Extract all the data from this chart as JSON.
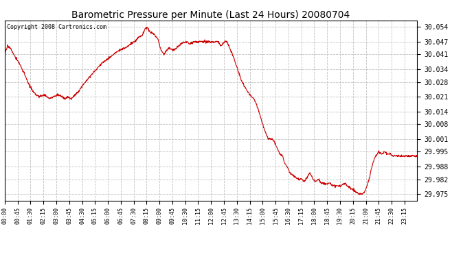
{
  "title": "Barometric Pressure per Minute (Last 24 Hours) 20080704",
  "copyright": "Copyright 2008 Cartronics.com",
  "line_color": "#cc0000",
  "bg_color": "#ffffff",
  "grid_color": "#c0c0c0",
  "yticks": [
    29.975,
    29.982,
    29.988,
    29.995,
    30.001,
    30.008,
    30.014,
    30.021,
    30.028,
    30.034,
    30.041,
    30.047,
    30.054
  ],
  "ylim": [
    29.972,
    30.057
  ],
  "xtick_labels": [
    "00:00",
    "00:45",
    "01:30",
    "02:15",
    "03:00",
    "03:45",
    "04:30",
    "05:15",
    "06:00",
    "06:45",
    "07:30",
    "08:15",
    "09:00",
    "09:45",
    "10:30",
    "11:15",
    "12:00",
    "12:45",
    "13:30",
    "14:15",
    "15:00",
    "15:45",
    "16:30",
    "17:15",
    "18:00",
    "18:45",
    "19:30",
    "20:15",
    "21:00",
    "21:45",
    "22:30",
    "23:15"
  ],
  "keypoints": [
    [
      0,
      30.041
    ],
    [
      10,
      30.045
    ],
    [
      20,
      30.044
    ],
    [
      35,
      30.04
    ],
    [
      50,
      30.037
    ],
    [
      65,
      30.033
    ],
    [
      80,
      30.028
    ],
    [
      100,
      30.023
    ],
    [
      120,
      30.021
    ],
    [
      140,
      30.022
    ],
    [
      155,
      30.02
    ],
    [
      170,
      30.021
    ],
    [
      185,
      30.022
    ],
    [
      200,
      30.021
    ],
    [
      210,
      30.02
    ],
    [
      220,
      30.021
    ],
    [
      230,
      30.02
    ],
    [
      240,
      30.021
    ],
    [
      260,
      30.024
    ],
    [
      280,
      30.028
    ],
    [
      300,
      30.031
    ],
    [
      320,
      30.034
    ],
    [
      340,
      30.037
    ],
    [
      360,
      30.039
    ],
    [
      380,
      30.041
    ],
    [
      400,
      30.043
    ],
    [
      420,
      30.044
    ],
    [
      440,
      30.046
    ],
    [
      455,
      30.047
    ],
    [
      465,
      30.049
    ],
    [
      480,
      30.05
    ],
    [
      490,
      30.053
    ],
    [
      495,
      30.054
    ],
    [
      505,
      30.052
    ],
    [
      515,
      30.051
    ],
    [
      525,
      30.05
    ],
    [
      535,
      30.048
    ],
    [
      545,
      30.043
    ],
    [
      555,
      30.041
    ],
    [
      565,
      30.043
    ],
    [
      575,
      30.044
    ],
    [
      585,
      30.043
    ],
    [
      600,
      30.044
    ],
    [
      615,
      30.046
    ],
    [
      630,
      30.047
    ],
    [
      645,
      30.046
    ],
    [
      660,
      30.047
    ],
    [
      675,
      30.047
    ],
    [
      690,
      30.047
    ],
    [
      705,
      30.047
    ],
    [
      720,
      30.047
    ],
    [
      735,
      30.047
    ],
    [
      745,
      30.047
    ],
    [
      755,
      30.045
    ],
    [
      765,
      30.047
    ],
    [
      775,
      30.047
    ],
    [
      785,
      30.044
    ],
    [
      795,
      30.041
    ],
    [
      810,
      30.035
    ],
    [
      825,
      30.029
    ],
    [
      840,
      30.025
    ],
    [
      855,
      30.022
    ],
    [
      870,
      30.02
    ],
    [
      885,
      30.015
    ],
    [
      900,
      30.008
    ],
    [
      910,
      30.004
    ],
    [
      920,
      30.001
    ],
    [
      930,
      30.001
    ],
    [
      940,
      30.0
    ],
    [
      950,
      29.997
    ],
    [
      960,
      29.994
    ],
    [
      970,
      29.993
    ],
    [
      975,
      29.99
    ],
    [
      985,
      29.988
    ],
    [
      995,
      29.985
    ],
    [
      1005,
      29.984
    ],
    [
      1015,
      29.983
    ],
    [
      1025,
      29.982
    ],
    [
      1035,
      29.982
    ],
    [
      1045,
      29.981
    ],
    [
      1055,
      29.983
    ],
    [
      1065,
      29.985
    ],
    [
      1070,
      29.984
    ],
    [
      1075,
      29.982
    ],
    [
      1085,
      29.981
    ],
    [
      1095,
      29.982
    ],
    [
      1105,
      29.98
    ],
    [
      1115,
      29.98
    ],
    [
      1125,
      29.98
    ],
    [
      1135,
      29.98
    ],
    [
      1145,
      29.979
    ],
    [
      1155,
      29.979
    ],
    [
      1165,
      29.979
    ],
    [
      1175,
      29.979
    ],
    [
      1185,
      29.98
    ],
    [
      1195,
      29.979
    ],
    [
      1205,
      29.978
    ],
    [
      1215,
      29.977
    ],
    [
      1225,
      29.976
    ],
    [
      1235,
      29.975
    ],
    [
      1245,
      29.975
    ],
    [
      1255,
      29.976
    ],
    [
      1265,
      29.979
    ],
    [
      1275,
      29.984
    ],
    [
      1285,
      29.99
    ],
    [
      1295,
      29.993
    ],
    [
      1305,
      29.995
    ],
    [
      1315,
      29.994
    ],
    [
      1325,
      29.995
    ],
    [
      1335,
      29.994
    ],
    [
      1345,
      29.994
    ],
    [
      1355,
      29.993
    ],
    [
      1365,
      29.993
    ],
    [
      1375,
      29.993
    ],
    [
      1385,
      29.993
    ],
    [
      1395,
      29.993
    ],
    [
      1410,
      29.993
    ],
    [
      1425,
      29.993
    ],
    [
      1439,
      29.993
    ]
  ]
}
